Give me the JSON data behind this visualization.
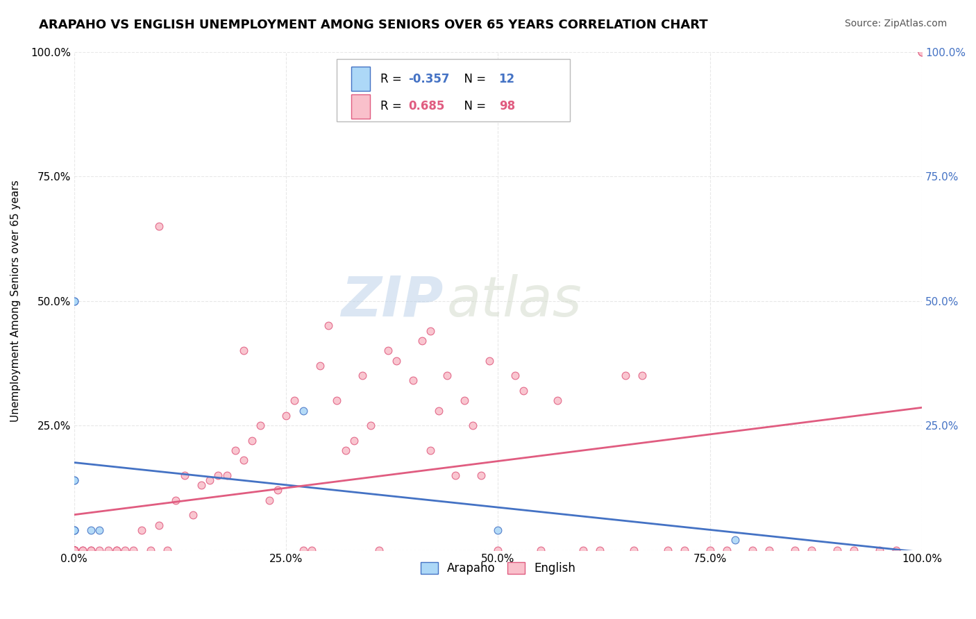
{
  "title": "ARAPAHO VS ENGLISH UNEMPLOYMENT AMONG SENIORS OVER 65 YEARS CORRELATION CHART",
  "source": "Source: ZipAtlas.com",
  "ylabel": "Unemployment Among Seniors over 65 years",
  "watermark_zip": "ZIP",
  "watermark_atlas": "atlas",
  "arapaho_R": -0.357,
  "arapaho_N": 12,
  "english_R": 0.685,
  "english_N": 98,
  "arapaho_color": "#add8f7",
  "arapaho_line_color": "#4472C4",
  "english_color": "#f9c0cb",
  "english_line_color": "#e05c80",
  "arapaho_x": [
    0.0,
    0.0,
    0.0,
    0.0,
    0.0,
    0.0,
    0.0,
    0.02,
    0.03,
    0.27,
    0.5,
    0.78
  ],
  "arapaho_y": [
    0.5,
    0.5,
    0.14,
    0.14,
    0.04,
    0.04,
    0.04,
    0.04,
    0.04,
    0.28,
    0.04,
    0.02
  ],
  "english_x": [
    0.0,
    0.0,
    0.0,
    0.0,
    0.0,
    0.0,
    0.0,
    0.0,
    0.0,
    0.0,
    0.0,
    0.0,
    0.0,
    0.0,
    0.0,
    0.0,
    0.0,
    0.0,
    0.0,
    0.0,
    0.01,
    0.01,
    0.02,
    0.02,
    0.03,
    0.04,
    0.05,
    0.05,
    0.06,
    0.07,
    0.08,
    0.09,
    0.1,
    0.11,
    0.12,
    0.13,
    0.14,
    0.15,
    0.16,
    0.17,
    0.18,
    0.19,
    0.2,
    0.21,
    0.22,
    0.23,
    0.24,
    0.25,
    0.26,
    0.27,
    0.28,
    0.29,
    0.3,
    0.31,
    0.32,
    0.33,
    0.34,
    0.35,
    0.36,
    0.37,
    0.38,
    0.4,
    0.41,
    0.42,
    0.43,
    0.44,
    0.45,
    0.46,
    0.47,
    0.48,
    0.49,
    0.5,
    0.52,
    0.53,
    0.55,
    0.57,
    0.6,
    0.62,
    0.65,
    0.66,
    0.67,
    0.7,
    0.72,
    0.75,
    0.77,
    0.8,
    0.82,
    0.85,
    0.87,
    0.9,
    0.92,
    0.95,
    0.97,
    1.0,
    1.0,
    0.1,
    0.2,
    0.42
  ],
  "english_y": [
    0.0,
    0.0,
    0.0,
    0.0,
    0.0,
    0.0,
    0.0,
    0.0,
    0.0,
    0.0,
    0.0,
    0.0,
    0.0,
    0.0,
    0.0,
    0.0,
    0.0,
    0.0,
    0.0,
    0.0,
    0.0,
    0.0,
    0.0,
    0.0,
    0.0,
    0.0,
    0.0,
    0.0,
    0.0,
    0.0,
    0.04,
    0.0,
    0.05,
    0.0,
    0.1,
    0.15,
    0.07,
    0.13,
    0.14,
    0.15,
    0.15,
    0.2,
    0.18,
    0.22,
    0.25,
    0.1,
    0.12,
    0.27,
    0.3,
    0.0,
    0.0,
    0.37,
    0.45,
    0.3,
    0.2,
    0.22,
    0.35,
    0.25,
    0.0,
    0.4,
    0.38,
    0.34,
    0.42,
    0.2,
    0.28,
    0.35,
    0.15,
    0.3,
    0.25,
    0.15,
    0.38,
    0.0,
    0.35,
    0.32,
    0.0,
    0.3,
    0.0,
    0.0,
    0.35,
    0.0,
    0.35,
    0.0,
    0.0,
    0.0,
    0.0,
    0.0,
    0.0,
    0.0,
    0.0,
    0.0,
    0.0,
    0.0,
    0.0,
    1.0,
    1.0,
    0.65,
    0.4,
    0.44
  ],
  "xlim": [
    0.0,
    1.0
  ],
  "ylim": [
    0.0,
    1.0
  ],
  "xticks": [
    0.0,
    0.25,
    0.5,
    0.75,
    1.0
  ],
  "yticks": [
    0.0,
    0.25,
    0.5,
    0.75,
    1.0
  ],
  "xticklabels": [
    "0.0%",
    "25.0%",
    "50.0%",
    "75.0%",
    "100.0%"
  ],
  "yticklabels": [
    "",
    "25.0%",
    "50.0%",
    "75.0%",
    "100.0%"
  ],
  "right_yticklabels": [
    "",
    "25.0%",
    "50.0%",
    "75.0%",
    "100.0%"
  ],
  "background_color": "#ffffff",
  "grid_color": "#e8e8e8"
}
